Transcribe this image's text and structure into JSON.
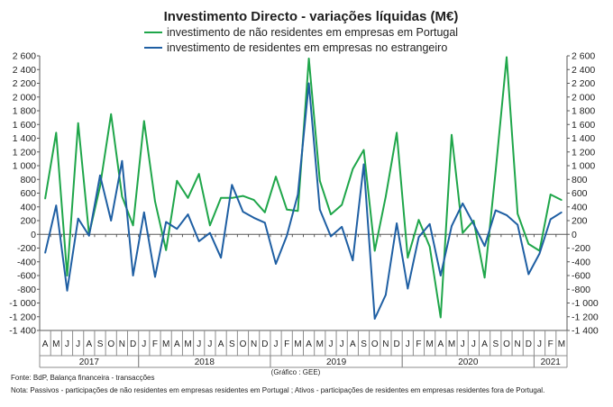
{
  "chart_data": {
    "type": "line",
    "title": "Investimento Directo - variações líquidas (M€)",
    "ylim": [
      -1400,
      2600
    ],
    "yticks": [
      "2 600",
      "2 400",
      "2 200",
      "2 000",
      "1 800",
      "1 600",
      "1 400",
      "1 200",
      "1 000",
      "800",
      "600",
      "400",
      "200",
      "0",
      "-200",
      "-400",
      "-600",
      "-800",
      "-1 000",
      "-1 200",
      "-1 400"
    ],
    "grid": false,
    "legend_position": "top",
    "months": [
      "A",
      "M",
      "J",
      "J",
      "A",
      "S",
      "O",
      "N",
      "D",
      "J",
      "F",
      "M",
      "A",
      "M",
      "J",
      "J",
      "A",
      "S",
      "O",
      "N",
      "D",
      "J",
      "F",
      "M",
      "A",
      "M",
      "J",
      "J",
      "A",
      "S",
      "O",
      "N",
      "D",
      "J",
      "F",
      "M",
      "A",
      "M",
      "J",
      "J",
      "A",
      "S",
      "O",
      "N",
      "D",
      "J",
      "F",
      "M"
    ],
    "years": [
      {
        "label": "2017",
        "start": 0,
        "end": 9
      },
      {
        "label": "2018",
        "start": 9,
        "end": 21
      },
      {
        "label": "2019",
        "start": 21,
        "end": 33
      },
      {
        "label": "2020",
        "start": 33,
        "end": 45
      },
      {
        "label": "2021",
        "start": 45,
        "end": 48
      }
    ],
    "series": [
      {
        "name": "investimento de não residentes em empresas em Portugal",
        "color": "#1fa64a",
        "values": [
          520,
          1480,
          -600,
          1620,
          0,
          700,
          1750,
          550,
          130,
          1650,
          480,
          -230,
          780,
          530,
          880,
          130,
          530,
          530,
          560,
          500,
          320,
          840,
          360,
          340,
          2560,
          780,
          290,
          430,
          950,
          1230,
          -240,
          550,
          1480,
          -340,
          210,
          -180,
          -1210,
          1450,
          20,
          200,
          -630,
          920,
          2580,
          300,
          -140,
          -240,
          580,
          500
        ]
      },
      {
        "name": "investimento de residentes em empresas no estrangeiro",
        "color": "#1f5fa3",
        "values": [
          -270,
          420,
          -820,
          230,
          -20,
          860,
          200,
          1070,
          -600,
          320,
          -620,
          180,
          80,
          290,
          -100,
          20,
          -340,
          720,
          330,
          240,
          170,
          -430,
          -20,
          580,
          2200,
          360,
          -30,
          110,
          -380,
          1020,
          -1230,
          -880,
          160,
          -790,
          -40,
          150,
          -600,
          120,
          450,
          150,
          -170,
          350,
          280,
          140,
          -580,
          -280,
          220,
          320
        ]
      }
    ]
  },
  "footer": {
    "source": "Fonte: BdP, Balança financeira - transacções",
    "note": "Nota: Passivos - participações de não residentes em empresas residentes em Portugal ; Ativos - participações de residentes em empresas residentes fora de Portugal.",
    "credit": "(Gráfico : GEE)"
  }
}
